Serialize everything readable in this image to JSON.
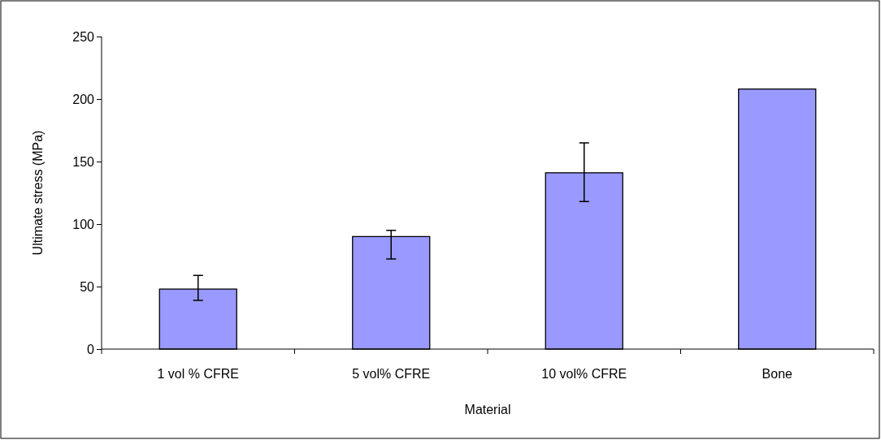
{
  "chart_data": {
    "type": "bar",
    "xlabel": "Material",
    "ylabel": "Ultimate stress (MPa)",
    "categories": [
      "1 vol % CFRE",
      "5 vol% CFRE",
      "10 vol% CFRE",
      "Bone"
    ],
    "values": [
      48,
      90,
      141,
      208
    ],
    "errors": [
      [
        39,
        59
      ],
      [
        72,
        95
      ],
      [
        118,
        165
      ],
      null
    ],
    "color": "#9999ff",
    "ylim": [
      0,
      250
    ],
    "yticks": [
      0,
      50,
      100,
      150,
      200,
      250
    ],
    "grid": false
  }
}
